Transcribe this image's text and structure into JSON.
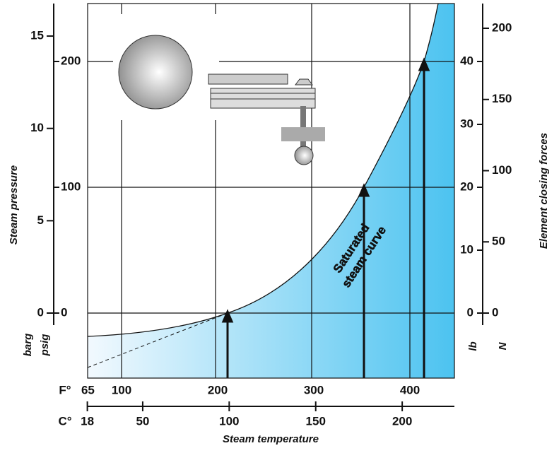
{
  "axes": {
    "pressure_barg": {
      "unit": "barg",
      "ticks": [
        0,
        5,
        10,
        15
      ]
    },
    "pressure_psig": {
      "unit": "psig",
      "ticks": [
        0,
        100,
        200
      ]
    },
    "force_lb": {
      "unit": "lb",
      "ticks": [
        0,
        10,
        20,
        30,
        40
      ]
    },
    "force_n": {
      "unit": "N",
      "ticks": [
        0,
        50,
        100,
        150,
        200
      ]
    },
    "temp_f": {
      "unit": "F°",
      "ticks": [
        65,
        100,
        200,
        300,
        400
      ]
    },
    "temp_c": {
      "unit": "C°",
      "ticks": [
        18,
        50,
        100,
        150,
        200
      ]
    }
  },
  "labels": {
    "pressure": "Steam pressure",
    "force": "Element closing forces",
    "temperature": "Steam temperature",
    "curve": [
      "Saturated",
      "steam  curve"
    ]
  }
}
